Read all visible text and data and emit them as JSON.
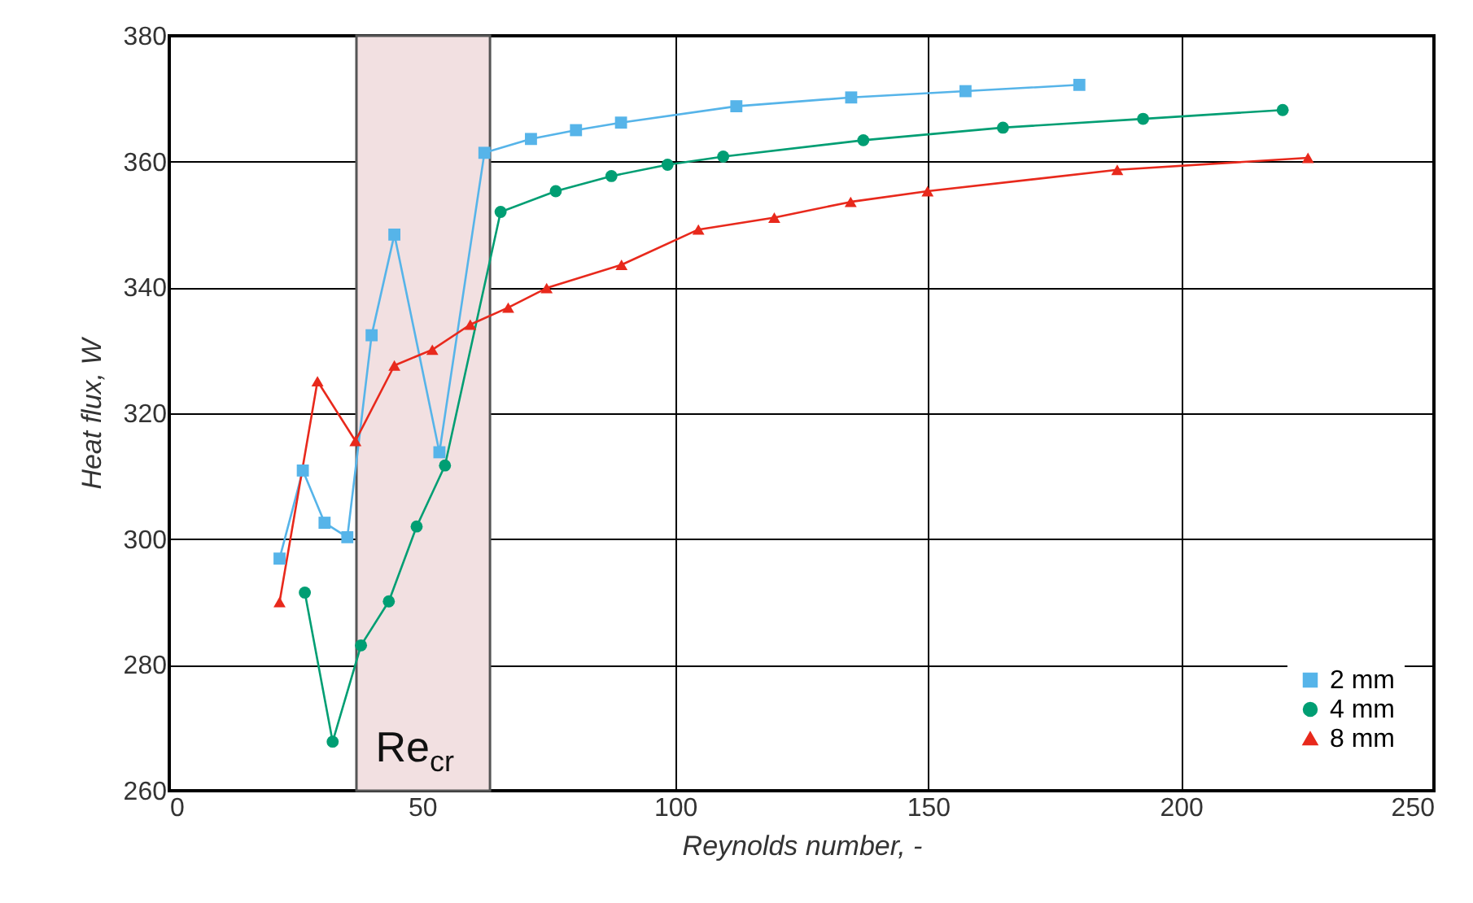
{
  "chart_data": {
    "type": "line",
    "xlabel": "Reynolds number, -",
    "ylabel": "Heat flux, W",
    "xlim": [
      0,
      250
    ],
    "xticks": [
      0,
      50,
      100,
      150,
      200,
      250
    ],
    "ylim": [
      260,
      380
    ],
    "yticks": [
      260,
      280,
      300,
      320,
      340,
      360,
      380
    ],
    "grid": true,
    "legend": "bottom right",
    "line_style": "solid",
    "bands": [
      {
        "axis": "x",
        "from": 37.0,
        "to": 63.4,
        "label": "Re$_{cr}$",
        "color": "#f2e0e1"
      }
    ],
    "series": [
      {
        "name": "2 mm",
        "color": "#56b4e9",
        "marker": "square",
        "x": [
          21.8,
          26.4,
          30.7,
          35.2,
          40.0,
          44.5,
          53.4,
          62.3,
          71.5,
          80.4,
          89.3,
          112.1,
          134.8,
          157.4,
          179.9
        ],
        "values": [
          296.9,
          310.9,
          302.6,
          300.3,
          332.4,
          348.4,
          313.8,
          361.4,
          363.6,
          365.0,
          366.2,
          368.8,
          370.2,
          371.2,
          372.2
        ]
      },
      {
        "name": "4 mm",
        "color": "#009e73",
        "marker": "circle",
        "x": [
          26.8,
          32.3,
          37.9,
          43.4,
          48.9,
          54.5,
          65.5,
          76.4,
          87.4,
          98.5,
          109.5,
          137.2,
          164.8,
          192.5,
          220.1
        ],
        "values": [
          291.5,
          267.8,
          283.1,
          290.1,
          302.0,
          311.7,
          352.0,
          355.3,
          357.7,
          359.5,
          360.8,
          363.4,
          365.4,
          366.8,
          368.2
        ]
      },
      {
        "name": "8 mm",
        "color": "#e8291c",
        "marker": "triangle",
        "x": [
          21.8,
          29.3,
          36.8,
          44.5,
          52.0,
          59.5,
          67.0,
          74.6,
          89.4,
          104.6,
          119.6,
          134.7,
          149.9,
          187.4,
          225.1
        ],
        "values": [
          290.0,
          325.1,
          315.6,
          327.6,
          330.1,
          334.1,
          336.8,
          339.9,
          343.6,
          349.2,
          351.1,
          353.6,
          355.3,
          358.7,
          360.6
        ]
      }
    ]
  }
}
